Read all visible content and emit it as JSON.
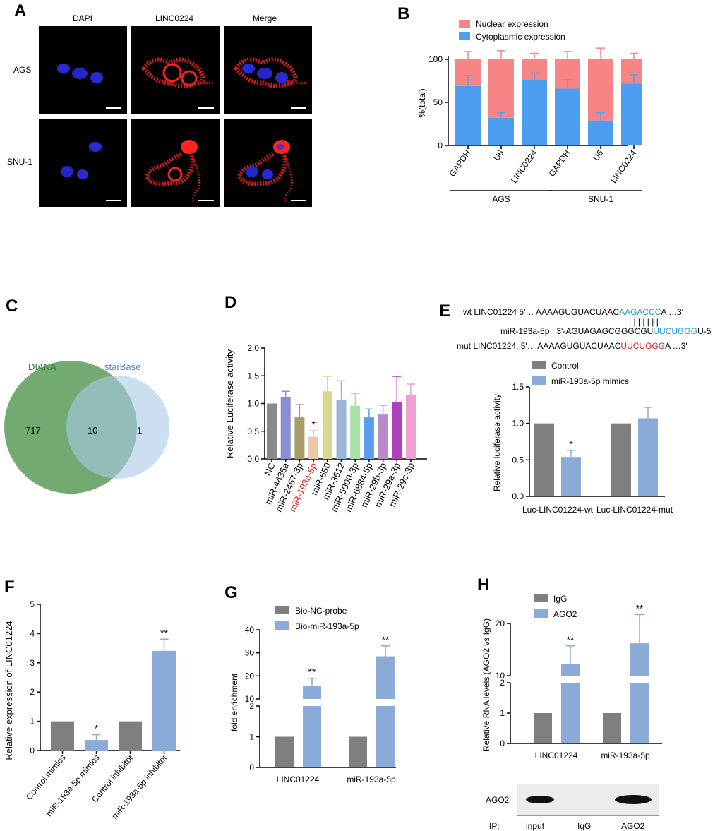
{
  "panel_letters": [
    "A",
    "B",
    "C",
    "D",
    "E",
    "F",
    "G",
    "H"
  ],
  "panelA": {
    "columns": [
      "DAPI",
      "LINC0224",
      "Merge"
    ],
    "rows": [
      "AGS",
      "SNU-1"
    ]
  },
  "colors": {
    "nuclear": "#f78585",
    "cytoplasmic": "#4d9ef0",
    "gray": "#7f7f7f",
    "lightblue": "#8aabd8",
    "venn_left": "#5e9e5e",
    "venn_right": "#a9c9e8",
    "highlight_blue": "#1a9ad6",
    "highlight_red": "#e02020"
  },
  "panelC": {
    "left_label": "DIANA",
    "right_label": "starBase",
    "left_only": "717",
    "overlap": "10",
    "right_only": "1"
  },
  "panelE": {
    "seq_rows": [
      {
        "label": "wt LINC01224",
        "prefix": "5'… AAAAGUGUACUAAC",
        "highlight": "AAGACCC",
        "suffix": "A …3'",
        "color": "blue"
      },
      {
        "label": "miR-193a-5p :",
        "prefix": "3'-AGUAGAGCGGGCGU",
        "highlight": "UUCUGGG",
        "suffix": "U-5'",
        "color": "blue"
      },
      {
        "label": "mut LINC01224:",
        "prefix": "5'… AAAAGUGUACUAAC",
        "highlight": "UUCUGGG",
        "suffix": "A …3'",
        "color": "red"
      }
    ],
    "pairing": "| | | | | | |"
  },
  "panelH_blot": {
    "band_label": "AGO2",
    "ip_label": "IP:",
    "lanes": [
      "input",
      "IgG",
      "AGO2"
    ]
  },
  "chart_data": [
    {
      "id": "B",
      "type": "bar",
      "stacked": true,
      "ylabel": "%(total)",
      "ylim": [
        0,
        100
      ],
      "yticks": [
        0,
        50,
        100
      ],
      "categories": [
        "GAPDH",
        "U6",
        "LINC0224",
        "GAPDH",
        "U6",
        "LINC0224"
      ],
      "groups": [
        {
          "label": "AGS",
          "span": [
            0,
            2
          ]
        },
        {
          "label": "SNU-1",
          "span": [
            3,
            5
          ]
        }
      ],
      "legend": [
        "Nuclear expression",
        "Cytoplasmic expression"
      ],
      "series": [
        {
          "name": "Cytoplasmic expression",
          "values": [
            69,
            32,
            76,
            66,
            29,
            72
          ],
          "errors": [
            12,
            6,
            8,
            10,
            9,
            10
          ]
        },
        {
          "name": "Nuclear expression",
          "values": [
            31,
            68,
            24,
            34,
            71,
            28
          ],
          "errors": [
            9,
            10,
            7,
            9,
            13,
            7
          ]
        }
      ]
    },
    {
      "id": "D",
      "type": "bar",
      "ylabel": "Relative Luciferase activity",
      "ylim": [
        0,
        2.0
      ],
      "yticks": [
        "0.0",
        "0.5",
        "1.0",
        "1.5",
        "2.0"
      ],
      "categories": [
        "NC",
        "miR-4436a",
        "miR-2467-3p",
        "miR-193a-5p",
        "miR-650",
        "miR-3612",
        "miR-5000-3p",
        "miR-6884-5p",
        "miR-29b-3p",
        "miR-29a-3p",
        "miR-29c-3p"
      ],
      "values": [
        1.0,
        1.11,
        0.75,
        0.4,
        1.22,
        1.06,
        0.96,
        0.75,
        0.8,
        1.02,
        1.16
      ],
      "errors": [
        0,
        0.11,
        0.23,
        0.11,
        0.27,
        0.35,
        0.22,
        0.15,
        0.17,
        0.47,
        0.19
      ],
      "bar_colors": [
        "#8a8a8a",
        "#8c8cd0",
        "#a89b6a",
        "#e8c8a8",
        "#d8d890",
        "#9ab4d8",
        "#a8e0a8",
        "#5a9cf0",
        "#b88ac8",
        "#b040c0",
        "#f0a0d0"
      ],
      "highlight_index": 3,
      "star_labels": [
        "",
        "",
        "",
        "*",
        "",
        "",
        "",
        "",
        "",
        "",
        ""
      ]
    },
    {
      "id": "E",
      "type": "bar",
      "ylabel": "Relative luciferase activity",
      "ylim": [
        0,
        1.5
      ],
      "yticks": [
        "0.0",
        "0.5",
        "1.0",
        "1.5"
      ],
      "categories": [
        "Luc-LINC01224-wt",
        "Luc-LINC01224-mut"
      ],
      "series": [
        {
          "name": "Control",
          "values": [
            1.0,
            1.0
          ],
          "errors": [
            0,
            0
          ]
        },
        {
          "name": "miR-193a-5p mimics",
          "values": [
            0.54,
            1.07
          ],
          "errors": [
            0.09,
            0.15
          ]
        }
      ],
      "star_labels": [
        [
          "",
          ""
        ],
        [
          "*",
          ""
        ]
      ]
    },
    {
      "id": "F",
      "type": "bar",
      "ylabel": "Relative expression of LINC01224",
      "ylim": [
        0,
        5
      ],
      "yticks": [
        "0",
        "1",
        "2",
        "3",
        "4",
        "5"
      ],
      "categories": [
        "Control mimics",
        "miR-193a-5p mimics",
        "Control inhibitor",
        "miR-193a-5p inhibitor"
      ],
      "values": [
        1.0,
        0.36,
        1.0,
        3.41
      ],
      "errors": [
        0,
        0.18,
        0,
        0.4
      ],
      "star_labels": [
        "",
        "*",
        "",
        "**"
      ]
    },
    {
      "id": "G",
      "type": "bar",
      "ylabel": "fold enrichment",
      "broken_axis": true,
      "yticks_lower": [
        "0",
        "1",
        "2"
      ],
      "yticks_upper": [
        "10",
        "20",
        "30",
        "40"
      ],
      "categories": [
        "LINC01224",
        "miR-193a-5p"
      ],
      "series": [
        {
          "name": "Bio-NC-probe",
          "values": [
            1.0,
            1.0
          ],
          "errors": [
            0,
            0
          ]
        },
        {
          "name": "Bio-miR-193a-5p",
          "values": [
            15.5,
            28.5
          ],
          "errors": [
            3.5,
            4.5
          ]
        }
      ],
      "star_labels": [
        [
          "",
          ""
        ],
        [
          "**",
          "**"
        ]
      ]
    },
    {
      "id": "H",
      "type": "bar",
      "ylabel": "Relative RNA levels (AGO2 vs IgG)",
      "broken_axis": true,
      "yticks_lower": [
        "0",
        "1",
        "2"
      ],
      "yticks_upper": [
        "10",
        "20"
      ],
      "categories": [
        "LINC01224",
        "miR-193a-5p"
      ],
      "series": [
        {
          "name": "IgG",
          "values": [
            1.0,
            1.0
          ],
          "errors": [
            0,
            0
          ]
        },
        {
          "name": "AGO2",
          "values": [
            12.2,
            16.2
          ],
          "errors": [
            3.5,
            5.5
          ]
        }
      ],
      "star_labels": [
        [
          "",
          ""
        ],
        [
          "**",
          "**"
        ]
      ]
    }
  ]
}
